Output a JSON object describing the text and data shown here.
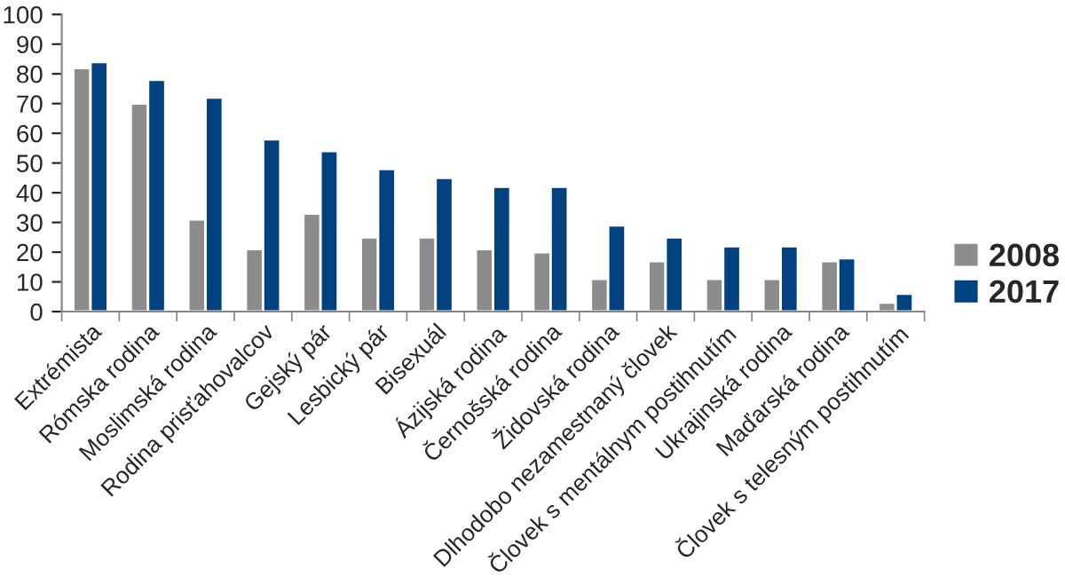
{
  "chart_data": {
    "type": "bar",
    "categories": [
      "Extrémista",
      "Rómska rodina",
      "Moslimská rodina",
      "Rodina prisťahovalcov",
      "Gejský pár",
      "Lesbický pár",
      "Bisexuál",
      "Ázijská rodina",
      "Černošská rodina",
      "Židovská rodina",
      "Dlhodobo nezamestnaný človek",
      "Človek s mentálnym postihnutím",
      "Ukrajinská rodina",
      "Maďarská rodina",
      "Človek s telesným postihnutím"
    ],
    "series": [
      {
        "name": "2008",
        "color": "#8c8c8c",
        "values": [
          82,
          70,
          31,
          21,
          33,
          25,
          25,
          21,
          20,
          11,
          17,
          11,
          11,
          17,
          3
        ]
      },
      {
        "name": "2017",
        "color": "#00427f",
        "values": [
          84,
          78,
          72,
          58,
          54,
          48,
          45,
          42,
          42,
          29,
          25,
          22,
          22,
          18,
          6
        ]
      }
    ],
    "ylim": [
      0,
      100
    ],
    "yticks": [
      0,
      10,
      20,
      30,
      40,
      50,
      60,
      70,
      80,
      90,
      100
    ],
    "grid": false,
    "legend": "right"
  }
}
